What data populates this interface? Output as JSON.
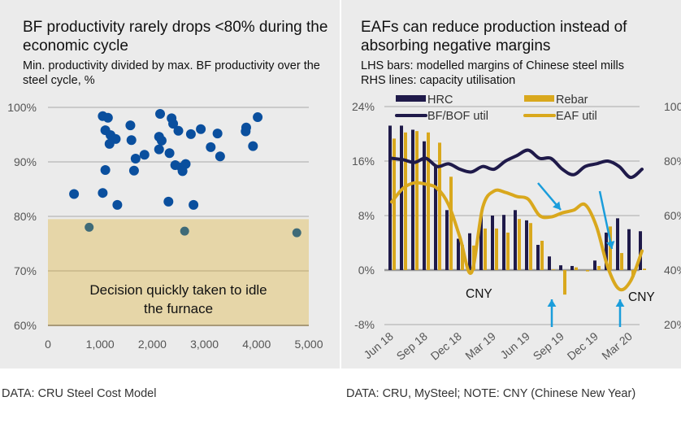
{
  "left": {
    "title": "BF productivity rarely drops <80% during the economic cycle",
    "subtitle": "Min. productivity divided by max. BF productivity over the steel cycle, %",
    "annotation_line1": "Decision quickly taken to idle",
    "annotation_line2": "the furnace",
    "footer": "DATA: CRU Steel Cost Model"
  },
  "right": {
    "title": "EAFs can reduce production instead of absorbing negative margins",
    "subtitle_line1": "LHS bars: modelled margins of Chinese steel mills",
    "subtitle_line2": "RHS lines: capacity utilisation",
    "footer": "DATA: CRU, MySteel; NOTE: CNY (Chinese New Year)"
  },
  "colors": {
    "panel_bg": "#ebebeb",
    "dot_blue": "#0a4f9e",
    "dot_teal": "#3f6b78",
    "zone_fill": "#e6d6a8",
    "hrc_navy": "#1f1a4a",
    "rebar_gold": "#d9a81d",
    "arrow_blue": "#1a9ddb",
    "grid": "#9a9a9a"
  },
  "chart_data": [
    {
      "type": "scatter",
      "title": "BF productivity rarely drops <80% during the economic cycle",
      "subtitle": "Min. productivity divided by max. BF productivity over the steel cycle, %",
      "xlabel": "",
      "ylabel": "",
      "xlim": [
        0,
        5000
      ],
      "ylim": [
        60,
        100
      ],
      "x_ticks": [
        "0",
        "1,000",
        "2,000",
        "3,000",
        "4,000",
        "5,000"
      ],
      "x_tick_values": [
        0,
        1000,
        2000,
        3000,
        4000,
        5000
      ],
      "y_ticks": [
        "60%",
        "70%",
        "80%",
        "90%",
        "100%"
      ],
      "y_tick_values": [
        60,
        70,
        80,
        90,
        100
      ],
      "grid": "horizontal",
      "shaded_region": {
        "y_from": 60,
        "y_to": 79.5,
        "label": "Decision quickly taken to idle the furnace"
      },
      "series": [
        {
          "name": "above-80",
          "points": [
            [
              500,
              84.1
            ],
            [
              1050,
              98.4
            ],
            [
              1150,
              98.1
            ],
            [
              1100,
              95.8
            ],
            [
              1200,
              94.9
            ],
            [
              1300,
              94.2
            ],
            [
              1180,
              93.3
            ],
            [
              1580,
              96.7
            ],
            [
              1600,
              94.0
            ],
            [
              1680,
              90.6
            ],
            [
              1100,
              88.5
            ],
            [
              1650,
              88.4
            ],
            [
              1050,
              84.3
            ],
            [
              1330,
              82.1
            ],
            [
              1850,
              91.3
            ],
            [
              2150,
              98.8
            ],
            [
              2130,
              94.6
            ],
            [
              2180,
              93.9
            ],
            [
              2130,
              92.3
            ],
            [
              2330,
              91.6
            ],
            [
              2370,
              98.0
            ],
            [
              2400,
              97.0
            ],
            [
              2500,
              95.7
            ],
            [
              2740,
              95.1
            ],
            [
              2930,
              96.0
            ],
            [
              2440,
              89.4
            ],
            [
              2560,
              89.0
            ],
            [
              2640,
              89.6
            ],
            [
              2580,
              88.3
            ],
            [
              2310,
              82.7
            ],
            [
              2790,
              82.1
            ],
            [
              3250,
              95.2
            ],
            [
              3120,
              92.7
            ],
            [
              3300,
              91.0
            ],
            [
              3800,
              96.3
            ],
            [
              3790,
              95.6
            ],
            [
              4020,
              98.2
            ],
            [
              3930,
              92.9
            ]
          ]
        },
        {
          "name": "below-80",
          "points": [
            [
              790,
              78.0
            ],
            [
              2620,
              77.3
            ],
            [
              4770,
              77.0
            ]
          ]
        }
      ]
    },
    {
      "type": "bar+line",
      "title": "EAFs can reduce production instead of absorbing negative margins",
      "categories": [
        "Jun 18",
        "Jul 18",
        "Aug 18",
        "Sep 18",
        "Oct 18",
        "Nov 18",
        "Dec 18",
        "Jan 19",
        "Feb 19",
        "Mar 19",
        "Apr 19",
        "May 19",
        "Jun 19",
        "Jul 19",
        "Aug 19",
        "Sep 19",
        "Oct 19",
        "Nov 19",
        "Dec 19",
        "Jan 20",
        "Feb 20",
        "Mar 20",
        "Apr 20"
      ],
      "x_tick_labels": [
        "Jun 18",
        "Sep 18",
        "Dec 18",
        "Mar 19",
        "Jun 19",
        "Sep 19",
        "Dec 19",
        "Mar 20"
      ],
      "y_left": {
        "ticks": [
          "-8%",
          "0%",
          "8%",
          "16%",
          "24%"
        ],
        "range": [
          -8,
          24
        ]
      },
      "y_right": {
        "ticks": [
          "20%",
          "40%",
          "60%",
          "80%",
          "100%"
        ],
        "range": [
          20,
          100
        ]
      },
      "grid": "horizontal",
      "legend": [
        "HRC",
        "Rebar",
        "BF/BOF util",
        "EAF util"
      ],
      "legend_position": "top",
      "series": [
        {
          "name": "HRC",
          "type": "bar",
          "axis": "left",
          "values": [
            21.2,
            21.2,
            20.6,
            18.9,
            15.2,
            8.8,
            4.6,
            5.4,
            8.0,
            8.0,
            8.1,
            8.8,
            7.3,
            3.7,
            2.0,
            0.7,
            0.6,
            0.0,
            1.4,
            5.5,
            7.6,
            6.0,
            5.7
          ]
        },
        {
          "name": "Rebar",
          "type": "bar",
          "axis": "left",
          "values": [
            19.3,
            20.2,
            20.4,
            20.2,
            18.7,
            13.7,
            3.7,
            3.6,
            6.1,
            6.1,
            5.5,
            7.5,
            6.9,
            4.3,
            0.1,
            -3.6,
            0.4,
            -0.2,
            0.6,
            6.4,
            2.5,
            -1.0,
            0.2
          ]
        },
        {
          "name": "BF/BOF util",
          "type": "line",
          "axis": "right",
          "values": [
            81,
            80.5,
            79.5,
            81,
            78,
            79,
            77,
            76,
            78,
            77,
            80,
            82,
            84,
            81,
            81,
            77,
            75,
            78,
            79,
            80,
            78,
            74,
            77
          ]
        },
        {
          "name": "EAF util",
          "type": "line",
          "axis": "right",
          "values": [
            65,
            70,
            72,
            71.5,
            70,
            64,
            52,
            39,
            63,
            69,
            68.5,
            67,
            66,
            60,
            59.5,
            61,
            62,
            64,
            56,
            41,
            33,
            36,
            47
          ]
        }
      ],
      "annotations": [
        {
          "text": "CNY",
          "near": "Feb 19"
        },
        {
          "text": "CNY",
          "near": "Jan 20"
        },
        {
          "type": "arrow-up",
          "near": "Sep 19"
        },
        {
          "type": "arrow-up",
          "near": "Feb 20"
        },
        {
          "type": "arrow-down",
          "near": "Jul 19"
        },
        {
          "type": "arrow-down",
          "near": "Mar 20"
        }
      ]
    }
  ]
}
